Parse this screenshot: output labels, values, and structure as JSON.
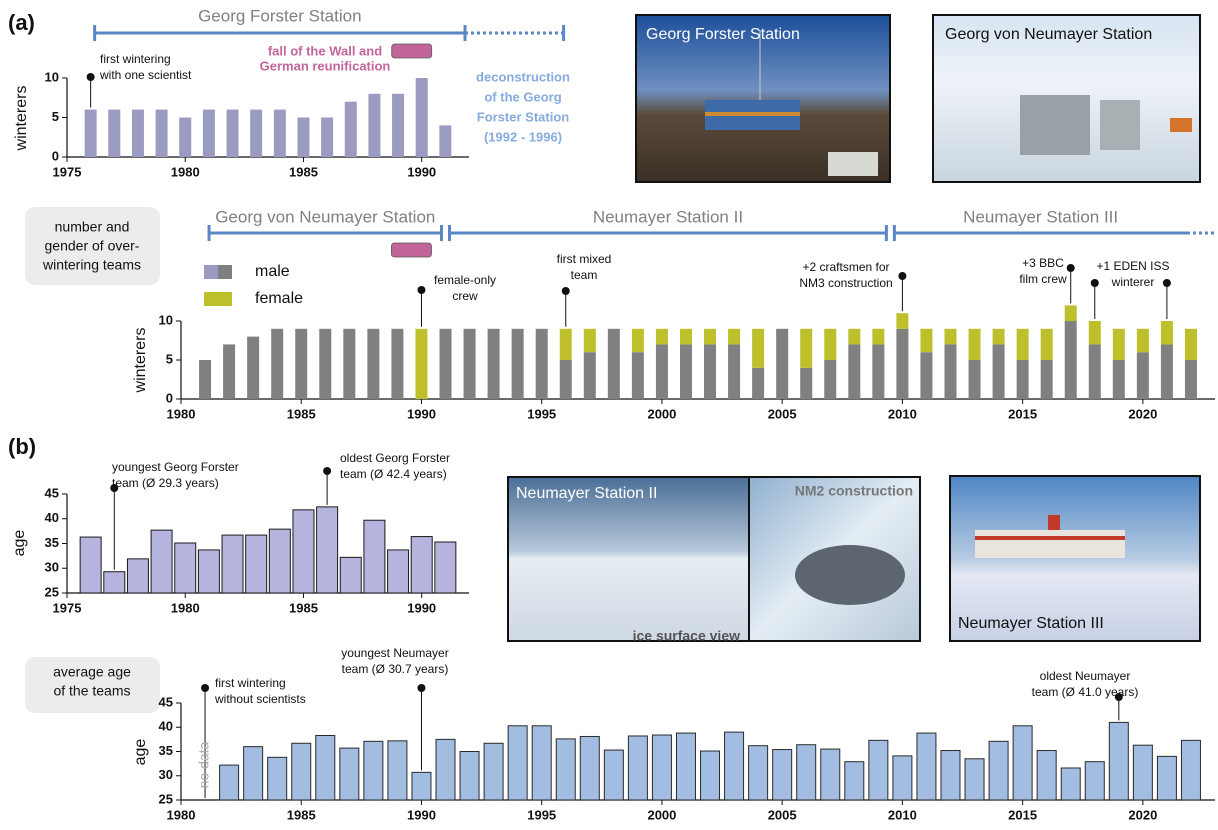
{
  "panels": [
    "(a)",
    "(b)"
  ],
  "side_labels": [
    [
      "number and",
      "gender of over-",
      "wintering teams"
    ],
    [
      "average age",
      "of the teams"
    ]
  ],
  "photos": [
    {
      "captions": [
        "Georg Forster Station"
      ]
    },
    {
      "captions": [
        "Georg von Neumayer Station"
      ]
    },
    {
      "captions": [
        "Neumayer Station II",
        "NM2 construction",
        "ice surface view"
      ]
    },
    {
      "captions": [
        "Neumayer Station III"
      ]
    }
  ],
  "chart_data": [
    {
      "type": "bar",
      "ylabel": "winterers",
      "x": [
        1976,
        1977,
        1978,
        1979,
        1980,
        1981,
        1982,
        1983,
        1984,
        1985,
        1986,
        1987,
        1988,
        1989,
        1990,
        1991
      ],
      "values": [
        6,
        6,
        6,
        6,
        5,
        6,
        6,
        6,
        6,
        5,
        5,
        7,
        8,
        8,
        10,
        4
      ],
      "color": "#9b9bc2",
      "xlim": [
        1975,
        1992
      ],
      "xticks": [
        1975,
        1980,
        1985,
        1990
      ],
      "ylim": [
        0,
        10
      ],
      "yticks": [
        0,
        5,
        10
      ],
      "timeline": [
        {
          "label": "Georg Forster Station",
          "start": 1976,
          "end": 1992,
          "dotted_end": 1996,
          "color": "#5a87c5"
        }
      ],
      "note": [
        "deconstruction",
        "of the Georg",
        "Forster Station",
        "(1992 - 1996)"
      ],
      "note_color": "#86abdc",
      "event": {
        "x": 1990,
        "lines": [
          "fall of the Wall and",
          "German reunification"
        ],
        "color": "#c2659a"
      },
      "annotations": [
        {
          "x": [
            1976
          ],
          "lines": [
            "first wintering",
            "with one scientist"
          ]
        }
      ]
    },
    {
      "type": "stacked_bar",
      "ylabel": "winterers",
      "x": [
        1981,
        1982,
        1983,
        1984,
        1985,
        1986,
        1987,
        1988,
        1989,
        1990,
        1991,
        1992,
        1993,
        1994,
        1995,
        1996,
        1997,
        1998,
        1999,
        2000,
        2001,
        2002,
        2003,
        2004,
        2005,
        2006,
        2007,
        2008,
        2009,
        2010,
        2011,
        2012,
        2013,
        2014,
        2015,
        2016,
        2017,
        2018,
        2019,
        2020,
        2021,
        2022
      ],
      "series": [
        {
          "name": "male",
          "color": "#808080",
          "values": [
            5,
            7,
            8,
            9,
            9,
            9,
            9,
            9,
            9,
            0,
            9,
            9,
            9,
            9,
            9,
            5,
            6,
            9,
            6,
            7,
            7,
            7,
            7,
            4,
            9,
            4,
            5,
            7,
            7,
            9,
            6,
            7,
            5,
            7,
            5,
            5,
            10,
            7,
            5,
            6,
            7,
            5
          ]
        },
        {
          "name": "female",
          "color": "#bdbf2b",
          "values": [
            0,
            0,
            0,
            0,
            0,
            0,
            0,
            0,
            0,
            9,
            0,
            0,
            0,
            0,
            0,
            4,
            3,
            0,
            3,
            2,
            2,
            2,
            2,
            5,
            0,
            5,
            4,
            2,
            2,
            2,
            3,
            2,
            4,
            2,
            4,
            4,
            2,
            3,
            4,
            3,
            3,
            4
          ]
        }
      ],
      "xlim": [
        1980,
        2023
      ],
      "xticks": [
        1980,
        1985,
        1990,
        1995,
        2000,
        2005,
        2010,
        2015,
        2020
      ],
      "ylim": [
        0,
        10
      ],
      "yticks": [
        0,
        5,
        10
      ],
      "timeline": [
        {
          "label": "Georg von Neumayer Station",
          "start": 1981,
          "end": 1991,
          "color": "#5a87c5"
        },
        {
          "label": "Neumayer Station II",
          "start": 1991,
          "end": 2009.5,
          "color": "#5a87c5"
        },
        {
          "label": "Neumayer Station III",
          "start": 2009.5,
          "end": 2022,
          "dotted_end": 2023,
          "color": "#5a87c5"
        }
      ],
      "event": {
        "x": 1990,
        "color": "#c2659a"
      },
      "annotations": [
        {
          "x": [
            1990
          ],
          "lines": [
            "female-only",
            "crew"
          ]
        },
        {
          "x": [
            1996
          ],
          "lines": [
            "first mixed",
            "team"
          ]
        },
        {
          "x": [
            2010
          ],
          "lines": [
            "+2 craftsmen  for",
            "NM3 construction"
          ]
        },
        {
          "x": [
            2017
          ],
          "lines": [
            "+3 BBC",
            "film crew"
          ]
        },
        {
          "x": [
            2018,
            2021
          ],
          "lines": [
            "+1 EDEN ISS",
            "winterer"
          ]
        }
      ]
    },
    {
      "type": "bar",
      "ylabel": "age",
      "x": [
        1976,
        1977,
        1978,
        1979,
        1980,
        1981,
        1982,
        1983,
        1984,
        1985,
        1986,
        1987,
        1988,
        1989,
        1990,
        1991
      ],
      "values": [
        36.3,
        29.3,
        31.9,
        37.7,
        35.1,
        33.7,
        36.7,
        36.7,
        37.9,
        41.8,
        42.4,
        32.2,
        39.7,
        33.7,
        36.4,
        35.3
      ],
      "color": "#b4b4de",
      "edgecolor": "#1a1a1a",
      "xlim": [
        1975,
        1992
      ],
      "xticks": [
        1975,
        1980,
        1985,
        1990
      ],
      "ylim": [
        25,
        45
      ],
      "yticks": [
        25,
        30,
        35,
        40,
        45
      ],
      "annotations": [
        {
          "x": [
            1977
          ],
          "lines": [
            "youngest Georg Forster",
            "team (Ø 29.3 years)"
          ]
        },
        {
          "x": [
            1986
          ],
          "lines": [
            "oldest Georg Forster",
            "team (Ø 42.4 years)"
          ]
        }
      ]
    },
    {
      "type": "bar",
      "ylabel": "age",
      "x": [
        1981,
        1982,
        1983,
        1984,
        1985,
        1986,
        1987,
        1988,
        1989,
        1990,
        1991,
        1992,
        1993,
        1994,
        1995,
        1996,
        1997,
        1998,
        1999,
        2000,
        2001,
        2002,
        2003,
        2004,
        2005,
        2006,
        2007,
        2008,
        2009,
        2010,
        2011,
        2012,
        2013,
        2014,
        2015,
        2016,
        2017,
        2018,
        2019,
        2020,
        2021,
        2022
      ],
      "values": [
        null,
        32.2,
        36.0,
        33.8,
        36.7,
        38.3,
        35.7,
        37.1,
        37.2,
        30.7,
        37.5,
        35.0,
        36.7,
        40.3,
        40.3,
        37.6,
        38.1,
        35.3,
        38.2,
        38.4,
        38.8,
        35.1,
        39.0,
        36.2,
        35.4,
        36.4,
        35.5,
        32.9,
        37.3,
        34.1,
        38.8,
        35.2,
        33.5,
        37.1,
        40.3,
        35.2,
        31.6,
        32.9,
        41.0,
        36.3,
        34.0,
        37.3
      ],
      "color": "#a3bde2",
      "edgecolor": "#2a2a2a",
      "xlim": [
        1980,
        2023
      ],
      "xticks": [
        1980,
        1985,
        1990,
        1995,
        2000,
        2005,
        2010,
        2015,
        2020
      ],
      "ylim": [
        25,
        45
      ],
      "yticks": [
        25,
        30,
        35,
        40,
        45
      ],
      "missing_label": "no data",
      "annotations": [
        {
          "x": [
            1981
          ],
          "lines": [
            "first wintering",
            "without scientists"
          ]
        },
        {
          "x": [
            1990
          ],
          "lines": [
            "youngest Neumayer",
            "team (Ø 30.7 years)"
          ]
        },
        {
          "x": [
            2019
          ],
          "lines": [
            "oldest Neumayer",
            "team (Ø 41.0 years)"
          ]
        }
      ]
    }
  ]
}
